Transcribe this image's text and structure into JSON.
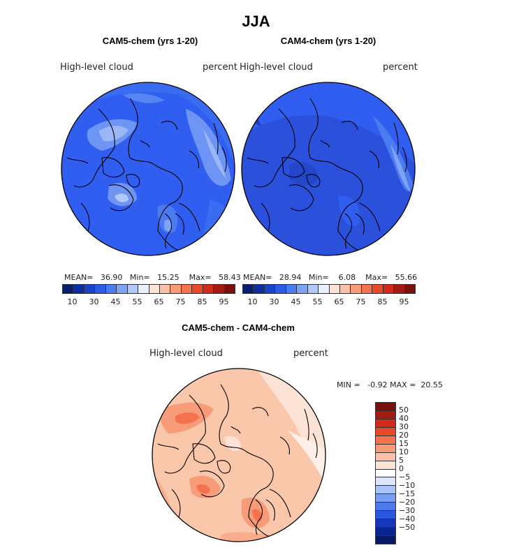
{
  "figure": {
    "title": "JJA",
    "panels": [
      {
        "title": "CAM5-chem (yrs 1-20)",
        "variable": "High-level cloud",
        "units": "percent",
        "stats": {
          "mean_label": "MEAN=",
          "mean": "36.90",
          "min_label": "Min=",
          "min": "15.25",
          "max_label": "Max=",
          "max": "58.43"
        },
        "colorbar": {
          "colors": [
            "#081d6e",
            "#0c2ea0",
            "#1a43c8",
            "#2a5ce6",
            "#4b7bf0",
            "#7ea3f5",
            "#b1c8f9",
            "#e8f0fd",
            "#fde3d6",
            "#fbc1a7",
            "#f89b79",
            "#f4724d",
            "#e8482a",
            "#cf2a1a",
            "#a31a12",
            "#7a0f0c"
          ],
          "ticks": [
            "10",
            "30",
            "45",
            "55",
            "65",
            "75",
            "85",
            "95"
          ]
        }
      },
      {
        "title": "CAM4-chem (yrs 1-20)",
        "variable": "High-level cloud",
        "units": "percent",
        "stats": {
          "mean_label": "MEAN=",
          "mean": "28.94",
          "min_label": "Min=",
          "min": "6.08",
          "max_label": "Max=",
          "max": "55.66"
        },
        "colorbar": {
          "colors": [
            "#081d6e",
            "#0c2ea0",
            "#1a43c8",
            "#2a5ce6",
            "#4b7bf0",
            "#7ea3f5",
            "#b1c8f9",
            "#e8f0fd",
            "#fde3d6",
            "#fbc1a7",
            "#f89b79",
            "#f4724d",
            "#e8482a",
            "#cf2a1a",
            "#a31a12",
            "#7a0f0c"
          ],
          "ticks": [
            "10",
            "30",
            "45",
            "55",
            "65",
            "75",
            "85",
            "95"
          ]
        }
      },
      {
        "title": "CAM5-chem - CAM4-chem",
        "variable": "High-level cloud",
        "units": "percent",
        "stats": {
          "min_label": "MIN =",
          "min": "-0.92",
          "max_label": "MAX =",
          "max": "20.55"
        },
        "colorbar": {
          "colors": [
            "#7a0f0c",
            "#a31a12",
            "#cf2a1a",
            "#e8482a",
            "#f4724d",
            "#f89b79",
            "#fbc1a7",
            "#fde3d6",
            "#ffffff",
            "#dbe6fb",
            "#a9c3f6",
            "#7a9ff2",
            "#4c7aec",
            "#2a58e0",
            "#1637b8",
            "#0a2490",
            "#071a6a"
          ],
          "ticks": [
            "50",
            "40",
            "30",
            "20",
            "15",
            "10",
            "5",
            "0",
            "−5",
            "−10",
            "−15",
            "−20",
            "−30",
            "−40",
            "−50"
          ]
        }
      }
    ]
  },
  "colors": {
    "map_blue_base": "#2f5ef0",
    "map_diff_base": "#fad0b6"
  }
}
